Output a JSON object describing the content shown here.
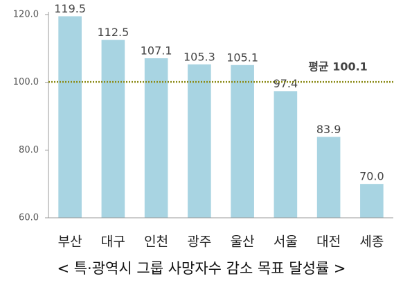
{
  "chart_data": {
    "type": "bar",
    "title": "< 특·광역시 그룹 사망자수 감소 목표 달성률 >",
    "categories": [
      "부산",
      "대구",
      "인천",
      "광주",
      "울산",
      "서울",
      "대전",
      "세종"
    ],
    "values": [
      119.5,
      112.5,
      107.1,
      105.3,
      105.1,
      97.4,
      83.9,
      70.0
    ],
    "value_labels": [
      "119.5",
      "112.5",
      "107.1",
      "105.3",
      "105.1",
      "97.4",
      "83.9",
      "70.0"
    ],
    "color": "#a8d4e2",
    "ylim": [
      60,
      120
    ],
    "yticks": [
      {
        "value": 60,
        "label": "60.0"
      },
      {
        "value": 80,
        "label": "80.0"
      },
      {
        "value": 100,
        "label": "100.0"
      },
      {
        "value": 120,
        "label": "120.0"
      }
    ],
    "average": {
      "value": 100.1,
      "label": "평균 100.1",
      "color": "#8c8c1a"
    }
  }
}
